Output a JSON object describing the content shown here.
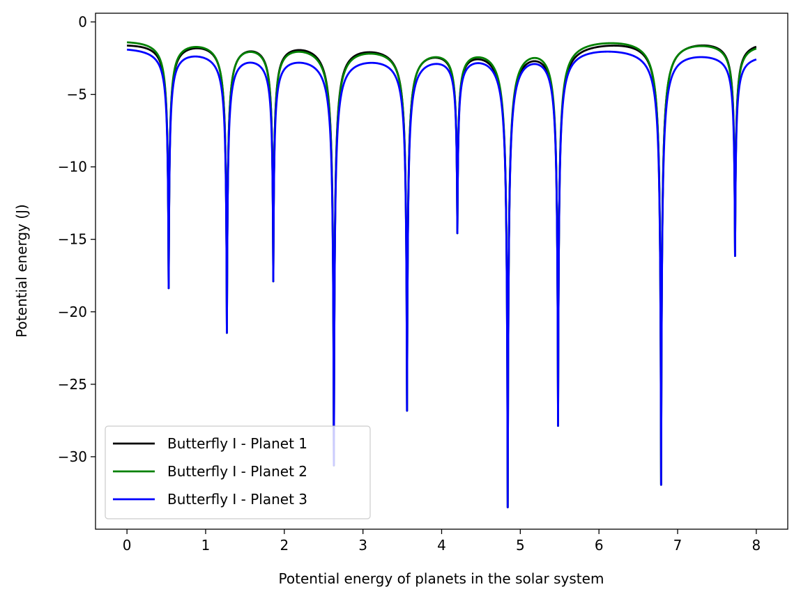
{
  "chart_data": {
    "type": "line",
    "title": "",
    "xlabel": "Potential energy of planets in the solar system",
    "ylabel": "Potential energy (J)",
    "xlim": [
      -0.4,
      8.4
    ],
    "ylim": [
      -35,
      0.6
    ],
    "xticks": [
      0,
      1,
      2,
      3,
      4,
      5,
      6,
      7,
      8
    ],
    "yticks": [
      0,
      -5,
      -10,
      -15,
      -20,
      -25,
      -30
    ],
    "grid": false,
    "legend_position": "lower-left",
    "series": [
      {
        "name": "Butterfly I - Planet 1",
        "color": "#000000",
        "x": [
          0,
          0.53,
          1.27,
          1.86,
          2.63,
          3.56,
          4.2,
          4.84,
          5.48,
          6.79,
          7.73,
          8
        ],
        "y": [
          -1.5,
          -18.3,
          -21.3,
          -17.7,
          -30.5,
          -26.7,
          -14.3,
          -33.3,
          -27.7,
          -31.9,
          -16.1,
          -1.2
        ]
      },
      {
        "name": "Butterfly I - Planet 2",
        "color": "#008000",
        "x": [
          0,
          0.53,
          1.27,
          1.86,
          2.63,
          3.56,
          4.2,
          4.84,
          5.48,
          6.79,
          7.73,
          8
        ],
        "y": [
          -1.5,
          -18.3,
          -21.3,
          -17.7,
          -30.5,
          -26.7,
          -14.3,
          -33.3,
          -27.7,
          -31.9,
          -16.1,
          -1.6
        ]
      },
      {
        "name": "Butterfly I - Planet 3",
        "color": "#0000ff",
        "x": [
          0,
          0.53,
          1.27,
          1.86,
          2.63,
          3.56,
          4.2,
          4.84,
          5.48,
          6.79,
          7.73,
          8
        ],
        "y": [
          -2.0,
          -18.3,
          -21.3,
          -17.7,
          -30.5,
          -26.7,
          -14.3,
          -33.3,
          -27.7,
          -31.9,
          -16.1,
          -1.9
        ]
      }
    ]
  }
}
